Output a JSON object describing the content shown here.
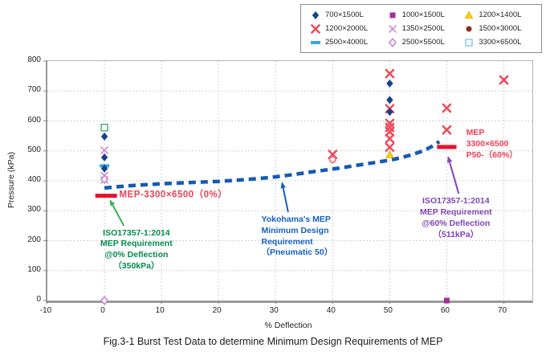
{
  "figure": {
    "caption": "Fig.3-1  Burst Test Data to determine Minimum Design Requirements of MEP"
  },
  "chart_data": {
    "type": "scatter",
    "xlabel": "% Deflection",
    "ylabel": "Pressure (kPa)",
    "xlim": [
      -10,
      75
    ],
    "ylim": [
      0,
      800
    ],
    "xticks": [
      -10,
      0,
      10,
      20,
      30,
      40,
      50,
      60,
      70
    ],
    "yticks": [
      0,
      100,
      200,
      300,
      400,
      500,
      600,
      700,
      800
    ],
    "grid": "dotted",
    "legend_position": "top-right",
    "series": {
      "s700": {
        "label": "700×1500L",
        "marker": "diamond",
        "color": "#17418f"
      },
      "s1000": {
        "label": "1000×1500L",
        "marker": "square",
        "color": "#a12f9f"
      },
      "s1200_1400": {
        "label": "1200×1400L",
        "marker": "triangle",
        "color": "#ffd400"
      },
      "s1200_2000": {
        "label": "1200×2000L",
        "marker": "x",
        "color": "#ee4a59"
      },
      "s1350": {
        "label": "1350×2500L",
        "marker": "x-thin",
        "color": "#c77fd0"
      },
      "s1500": {
        "label": "1500×3000L",
        "marker": "circle",
        "color": "#8d2b1d"
      },
      "s2500_4000": {
        "label": "2500×4000L",
        "marker": "dash",
        "color": "#35a6df"
      },
      "s2500_5500": {
        "label": "2500×5500L",
        "marker": "diamond-open",
        "color": "#c77fd0"
      },
      "s3300": {
        "label": "3300×6500L",
        "marker": "square-open",
        "color": "#8fd0ec",
        "plot_color": "#57b28e"
      }
    },
    "legend_order": [
      "s700",
      "s1000",
      "s1200_1400",
      "s1200_2000",
      "s1350",
      "s1500",
      "s2500_4000",
      "s2500_5500",
      "s3300"
    ],
    "points": [
      {
        "x": 0,
        "y": 578,
        "s": "s3300"
      },
      {
        "x": 0,
        "y": 548,
        "s": "s700"
      },
      {
        "x": 0,
        "y": 502,
        "s": "s1350"
      },
      {
        "x": 0,
        "y": 478,
        "s": "s700"
      },
      {
        "x": 0,
        "y": 450,
        "s": "s2500_4000"
      },
      {
        "x": 0,
        "y": 441,
        "s": "s700"
      },
      {
        "x": 0,
        "y": 417,
        "s": "s1350"
      },
      {
        "x": 0,
        "y": 403,
        "s": "s1350"
      },
      {
        "x": 0,
        "y": 405,
        "s": "s2500_5500"
      },
      {
        "x": 0,
        "y": 0,
        "s": "s2500_5500"
      },
      {
        "x": 40,
        "y": 488,
        "s": "s1200_2000"
      },
      {
        "x": 40,
        "y": 471,
        "s": "s1500",
        "marker": "circle-open",
        "color": "#ef6d79"
      },
      {
        "x": 50,
        "y": 758,
        "s": "s1200_2000"
      },
      {
        "x": 50,
        "y": 725,
        "s": "s700"
      },
      {
        "x": 50,
        "y": 670,
        "s": "s700"
      },
      {
        "x": 50,
        "y": 641,
        "s": "s1200_2000"
      },
      {
        "x": 50,
        "y": 630,
        "s": "s700"
      },
      {
        "x": 50,
        "y": 592,
        "s": "s1200_2000"
      },
      {
        "x": 50,
        "y": 578,
        "s": "s1200_2000"
      },
      {
        "x": 50,
        "y": 564,
        "s": "s1200_2000"
      },
      {
        "x": 50,
        "y": 541,
        "s": "s1200_2000"
      },
      {
        "x": 50,
        "y": 512,
        "s": "s1200_2000"
      },
      {
        "x": 50,
        "y": 487,
        "s": "s1200_1400"
      },
      {
        "x": 60,
        "y": 643,
        "s": "s1200_2000"
      },
      {
        "x": 60,
        "y": 570,
        "s": "s1200_2000"
      },
      {
        "x": 60,
        "y": 0,
        "s": "s1000"
      },
      {
        "x": 70,
        "y": 737,
        "s": "s1200_2000"
      }
    ],
    "mep_color": "#e8102e",
    "mep_bars": [
      {
        "x_from": -1.6,
        "x_to": 2.2,
        "kpa": 350
      },
      {
        "x_from": 58.3,
        "x_to": 61.7,
        "kpa": 513
      }
    ],
    "design_line": {
      "name": "Yokohama's MEP Minimum Design Requirement (Pneumatic 50)",
      "color": "#1459b4",
      "points": [
        [
          0,
          376
        ],
        [
          4,
          383
        ],
        [
          8,
          388
        ],
        [
          12,
          392
        ],
        [
          16,
          395
        ],
        [
          20,
          398
        ],
        [
          23,
          402
        ],
        [
          26,
          406
        ],
        [
          29,
          411
        ],
        [
          32,
          418
        ],
        [
          35,
          426
        ],
        [
          38,
          434
        ],
        [
          41,
          442
        ],
        [
          44,
          451
        ],
        [
          47,
          460
        ],
        [
          50,
          469
        ],
        [
          52,
          477
        ],
        [
          54,
          488
        ],
        [
          56,
          501
        ],
        [
          57.5,
          516
        ],
        [
          58.7,
          531
        ]
      ]
    },
    "annotations": [
      {
        "id": "mep-0",
        "color": "#ee3f55",
        "weight": 600,
        "align": "left",
        "anchor": "left-middle",
        "x_pct": 2.6,
        "kpa": 351,
        "size": 11.5,
        "spacing": 0.5,
        "lines": [
          "MEP-3300×6500（0%）"
        ]
      },
      {
        "id": "iso-0",
        "color": "#008a4b",
        "weight": 700,
        "align": "center",
        "anchor": "top-center",
        "x_pct": 5.6,
        "kpa": 243,
        "size": 10.5,
        "spacing": 0,
        "lines": [
          "ISO17357-1:2014",
          "MEP Requirement",
          "@0% Deflection",
          "（350kPa）"
        ]
      },
      {
        "id": "yokohama",
        "color": "#1560c4",
        "weight": 700,
        "align": "left",
        "anchor": "top-left",
        "x_pct": 27.5,
        "kpa": 287,
        "size": 10.5,
        "spacing": 0,
        "lines": [
          "Yokohama's MEP",
          "Minimum Design",
          "Requirement",
          "（Pneumatic 50）"
        ]
      },
      {
        "id": "iso-60",
        "color": "#8144b4",
        "weight": 700,
        "align": "center",
        "anchor": "top-center",
        "x_pct": 61.6,
        "kpa": 348,
        "size": 10.5,
        "spacing": 0,
        "lines": [
          "ISO17357-1:2014",
          "MEP Requirement",
          "@60% Deflection",
          "（511kPa）"
        ]
      },
      {
        "id": "mep-60",
        "color": "#ee3f55",
        "weight": 600,
        "align": "left",
        "anchor": "top-left",
        "x_pct": 63.4,
        "kpa": 577,
        "size": 10.5,
        "spacing": 0,
        "lines": [
          "MEP",
          "3300×6500",
          "P50-（60%）"
        ]
      }
    ],
    "arrows": [
      {
        "id": "arrow-green",
        "color": "#3cb054",
        "from": [
          3.4,
          250
        ],
        "to": [
          0.9,
          338
        ]
      },
      {
        "id": "arrow-blue",
        "color": "#1560c4",
        "from": [
          32.2,
          295
        ],
        "to": [
          31.1,
          397
        ]
      },
      {
        "id": "arrow-purple",
        "color": "#8144b4",
        "from": [
          62.1,
          357
        ],
        "to": [
          60.2,
          483
        ]
      }
    ]
  }
}
